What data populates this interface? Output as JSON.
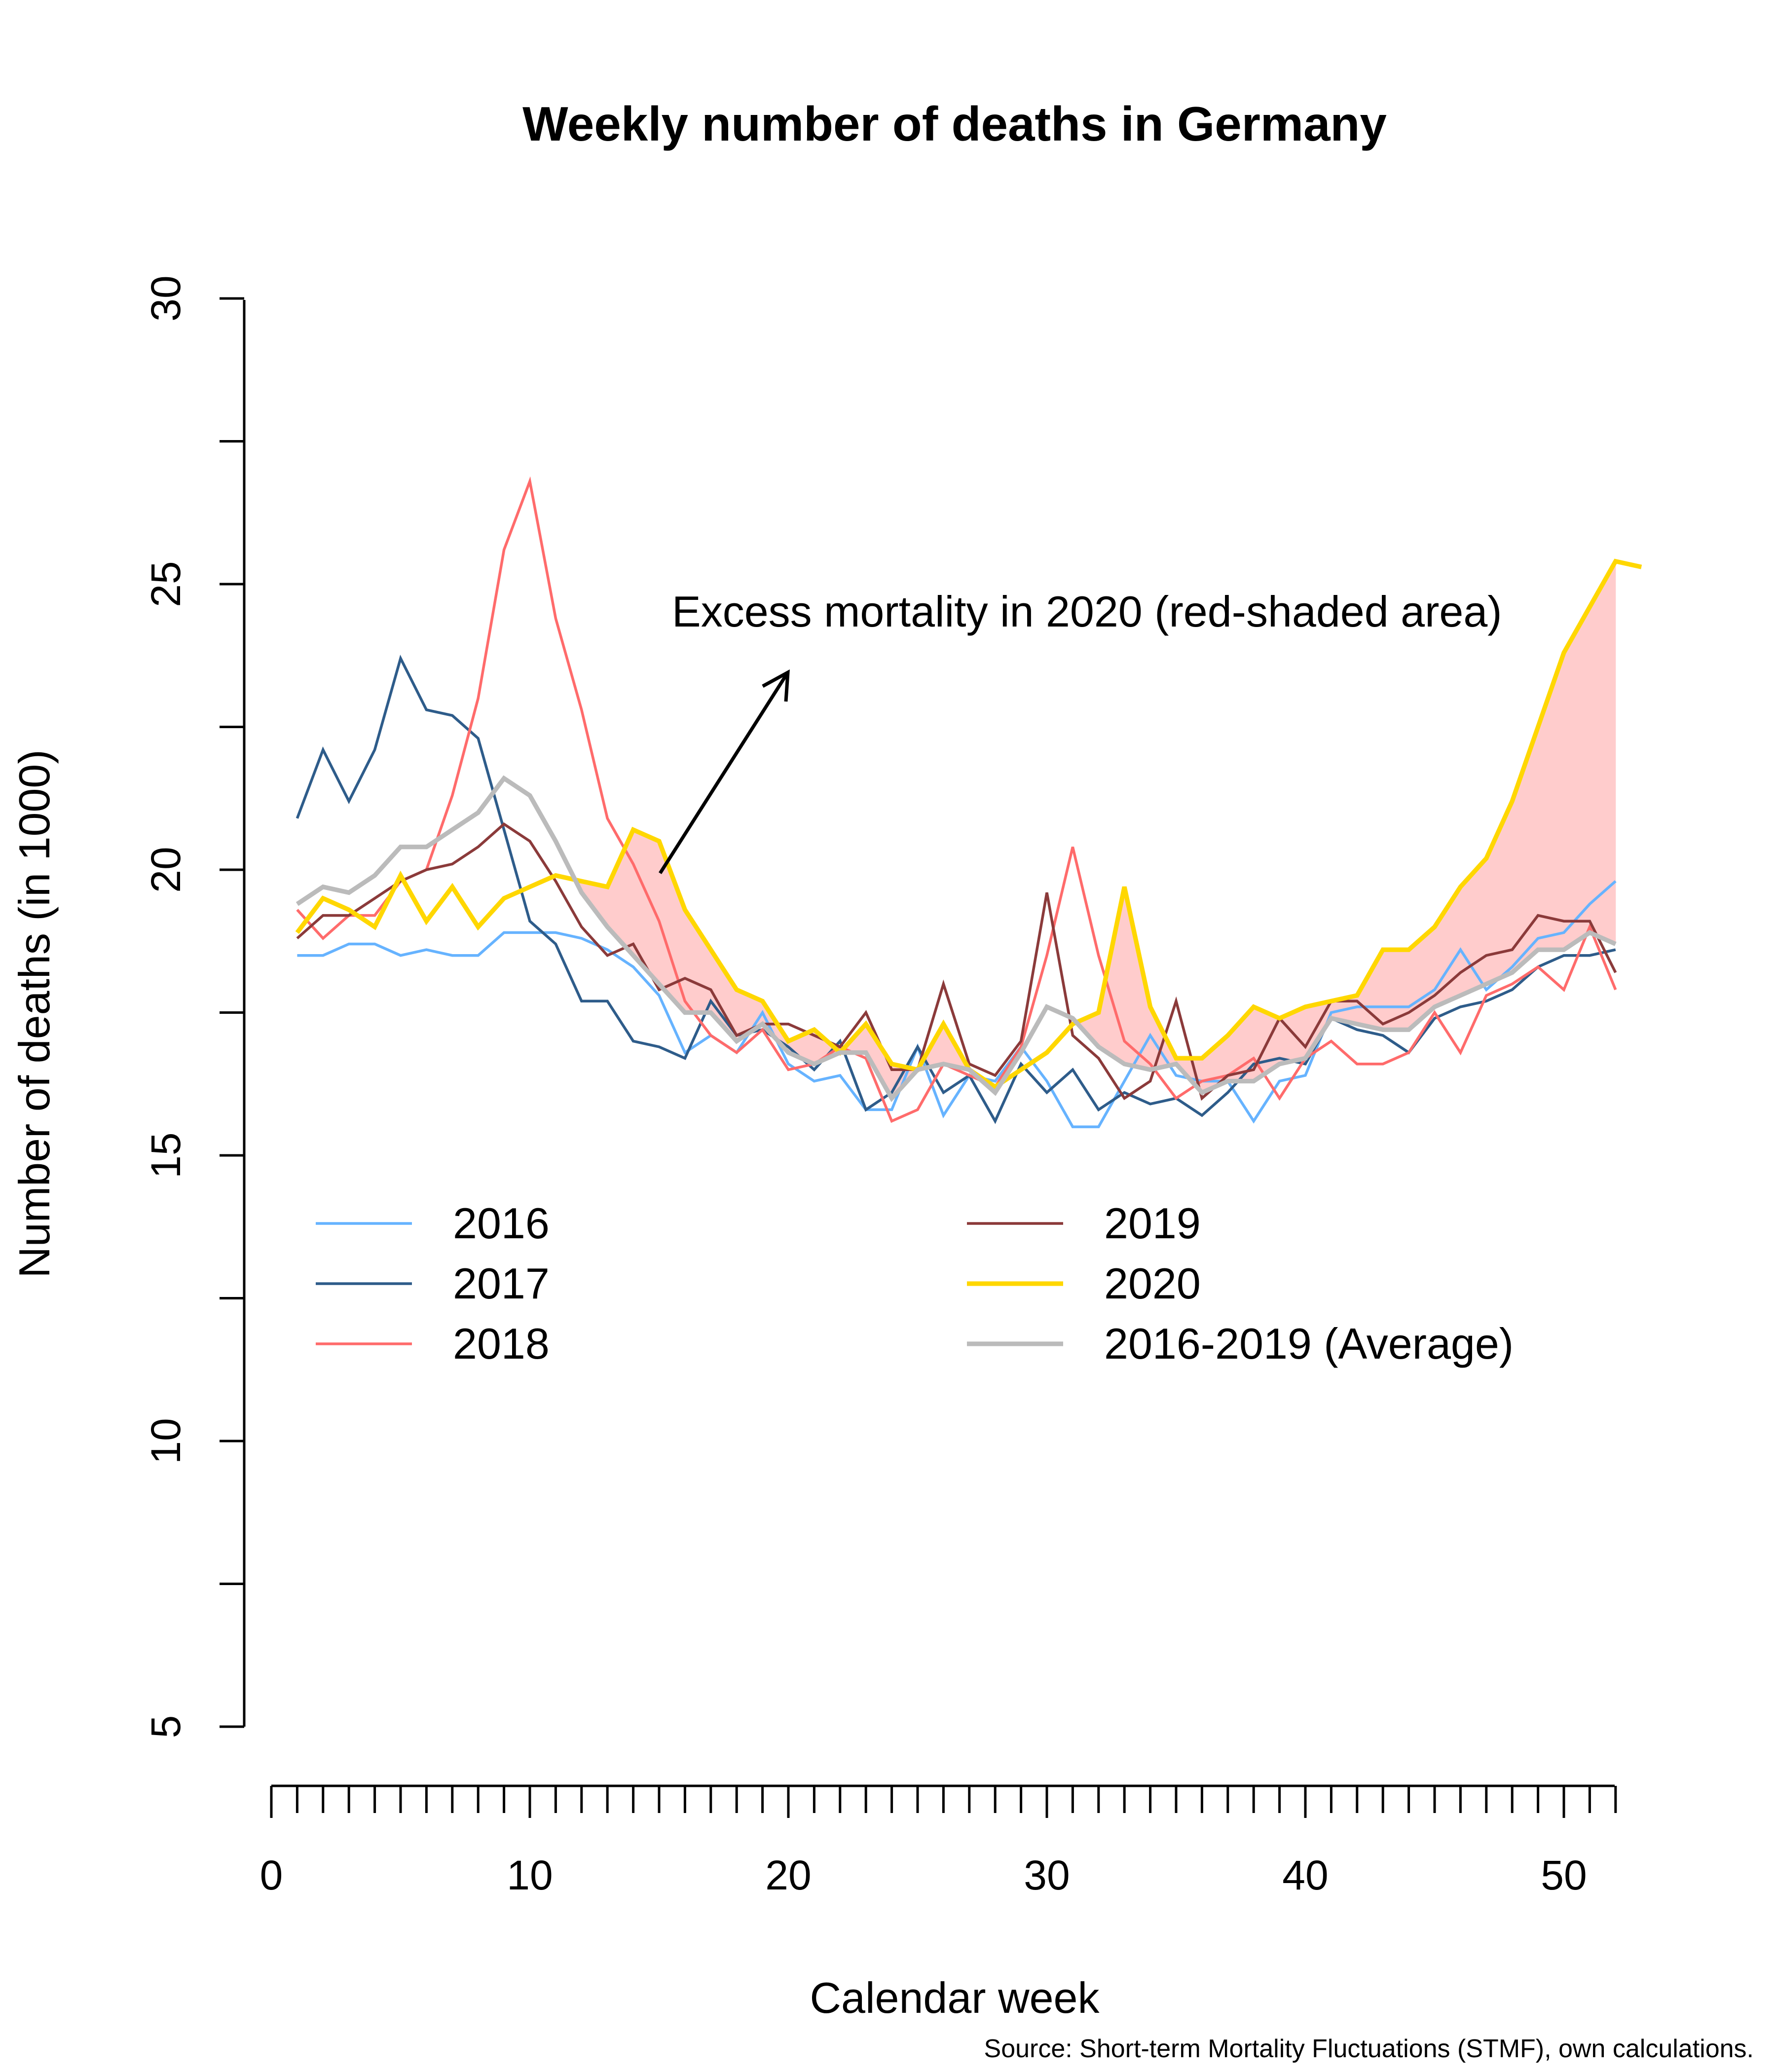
{
  "chart_data": {
    "type": "line",
    "title": "Weekly number of deaths in Germany",
    "xlabel": "Calendar week",
    "ylabel": "Number of deaths (in 1000)",
    "xlim": [
      0,
      52
    ],
    "ylim": [
      5,
      30
    ],
    "x_ticks": [
      "0",
      "10",
      "20",
      "30",
      "40",
      "50"
    ],
    "y_ticks": [
      "5",
      "10",
      "15",
      "20",
      "25",
      "30"
    ],
    "annotation": "Excess mortality in 2020 (red-shaded area)",
    "source": "Source: Short-term Mortality Fluctuations (STMF), own calculations.",
    "shade_color": "#ffcccc",
    "legend_position": "center",
    "series": [
      {
        "name": "2016",
        "color": "#66b3ff",
        "width": 2.5,
        "x": [
          1,
          2,
          3,
          4,
          5,
          6,
          7,
          8,
          9,
          10,
          11,
          12,
          13,
          14,
          15,
          16,
          17,
          18,
          19,
          20,
          21,
          22,
          23,
          24,
          25,
          26,
          27,
          28,
          29,
          30,
          31,
          32,
          33,
          34,
          35,
          36,
          37,
          38,
          39,
          40,
          41,
          42,
          43,
          44,
          45,
          46,
          47,
          48,
          49,
          50,
          51,
          52
        ],
        "values": [
          18.5,
          18.5,
          18.7,
          18.7,
          18.5,
          18.6,
          18.5,
          18.5,
          18.9,
          18.9,
          18.9,
          18.8,
          18.6,
          18.3,
          17.8,
          16.8,
          17.1,
          16.8,
          17.5,
          16.6,
          16.3,
          16.4,
          15.8,
          15.8,
          16.9,
          15.7,
          16.4,
          16.3,
          16.9,
          16.3,
          15.5,
          15.5,
          16.3,
          17.1,
          16.4,
          16.3,
          16.3,
          15.6,
          16.3,
          16.4,
          17.5,
          17.6,
          17.6,
          17.6,
          17.9,
          18.6,
          17.9,
          18.3,
          18.8,
          18.9,
          19.4,
          19.8
        ]
      },
      {
        "name": "2017",
        "color": "#2e5c8a",
        "width": 2.5,
        "x": [
          1,
          2,
          3,
          4,
          5,
          6,
          7,
          8,
          9,
          10,
          11,
          12,
          13,
          14,
          15,
          16,
          17,
          18,
          19,
          20,
          21,
          22,
          23,
          24,
          25,
          26,
          27,
          28,
          29,
          30,
          31,
          32,
          33,
          34,
          35,
          36,
          37,
          38,
          39,
          40,
          41,
          42,
          43,
          44,
          45,
          46,
          47,
          48,
          49,
          50,
          51,
          52
        ],
        "values": [
          20.9,
          22.1,
          21.2,
          22.1,
          23.7,
          22.8,
          22.7,
          22.3,
          20.7,
          19.1,
          18.7,
          17.7,
          17.7,
          17.0,
          16.9,
          16.7,
          17.7,
          17.1,
          17.2,
          16.9,
          16.5,
          17.0,
          15.8,
          16.1,
          16.9,
          16.1,
          16.4,
          15.6,
          16.6,
          16.1,
          16.5,
          15.8,
          16.1,
          15.9,
          16.0,
          15.7,
          16.1,
          16.6,
          16.7,
          16.6,
          17.4,
          17.2,
          17.1,
          16.8,
          17.4,
          17.6,
          17.7,
          17.9,
          18.3,
          18.5,
          18.5,
          18.6
        ]
      },
      {
        "name": "2018",
        "color": "#ff6b6b",
        "width": 2.5,
        "x": [
          1,
          2,
          3,
          4,
          5,
          6,
          7,
          8,
          9,
          10,
          11,
          12,
          13,
          14,
          15,
          16,
          17,
          18,
          19,
          20,
          21,
          22,
          23,
          24,
          25,
          26,
          27,
          28,
          29,
          30,
          31,
          32,
          33,
          34,
          35,
          36,
          37,
          38,
          39,
          40,
          41,
          42,
          43,
          44,
          45,
          46,
          47,
          48,
          49,
          50,
          51,
          52
        ],
        "values": [
          19.3,
          18.8,
          19.2,
          19.2,
          19.8,
          20.0,
          21.3,
          23.0,
          25.6,
          26.8,
          24.4,
          22.8,
          20.9,
          20.1,
          19.1,
          17.7,
          17.1,
          16.8,
          17.2,
          16.5,
          16.6,
          16.9,
          16.7,
          15.6,
          15.8,
          16.6,
          16.4,
          16.2,
          16.9,
          18.5,
          20.4,
          18.5,
          17.0,
          16.6,
          16.0,
          16.3,
          16.4,
          16.7,
          16.0,
          16.7,
          17.0,
          16.6,
          16.6,
          16.8,
          17.5,
          16.8,
          17.8,
          18.0,
          18.3,
          17.9,
          19.0,
          17.9
        ]
      },
      {
        "name": "2019",
        "color": "#8b3a3a",
        "width": 2.5,
        "x": [
          1,
          2,
          3,
          4,
          5,
          6,
          7,
          8,
          9,
          10,
          11,
          12,
          13,
          14,
          15,
          16,
          17,
          18,
          19,
          20,
          21,
          22,
          23,
          24,
          25,
          26,
          27,
          28,
          29,
          30,
          31,
          32,
          33,
          34,
          35,
          36,
          37,
          38,
          39,
          40,
          41,
          42,
          43,
          44,
          45,
          46,
          47,
          48,
          49,
          50,
          51,
          52
        ],
        "values": [
          18.8,
          19.2,
          19.2,
          19.5,
          19.8,
          20.0,
          20.1,
          20.4,
          20.8,
          20.5,
          19.8,
          19.0,
          18.5,
          18.7,
          17.9,
          18.1,
          17.9,
          17.1,
          17.3,
          17.3,
          17.1,
          16.9,
          17.5,
          16.5,
          16.5,
          18.0,
          16.6,
          16.4,
          17.0,
          19.6,
          17.1,
          16.7,
          16.0,
          16.3,
          17.7,
          16.0,
          16.4,
          16.5,
          17.4,
          16.9,
          17.7,
          17.7,
          17.3,
          17.5,
          17.8,
          18.2,
          18.5,
          18.6,
          19.2,
          19.1,
          19.1,
          18.2
        ]
      },
      {
        "name": "2020",
        "color": "#ffd700",
        "width": 4.2,
        "x": [
          1,
          2,
          3,
          4,
          5,
          6,
          7,
          8,
          9,
          10,
          11,
          12,
          13,
          14,
          15,
          16,
          17,
          18,
          19,
          20,
          21,
          22,
          23,
          24,
          25,
          26,
          27,
          28,
          29,
          30,
          31,
          32,
          33,
          34,
          35,
          36,
          37,
          38,
          39,
          40,
          41,
          42,
          43,
          44,
          45,
          46,
          47,
          48,
          49,
          50,
          51,
          52,
          53
        ],
        "values": [
          18.9,
          19.5,
          19.3,
          19.0,
          19.9,
          19.1,
          19.7,
          19.0,
          19.5,
          19.7,
          19.9,
          19.8,
          19.7,
          20.7,
          20.5,
          19.3,
          18.6,
          17.9,
          17.7,
          17.0,
          17.2,
          16.8,
          17.3,
          16.6,
          16.5,
          17.3,
          16.5,
          16.2,
          16.5,
          16.8,
          17.3,
          17.5,
          19.7,
          17.6,
          16.7,
          16.7,
          17.1,
          17.6,
          17.4,
          17.6,
          17.7,
          17.8,
          18.6,
          18.6,
          19.0,
          19.7,
          20.2,
          21.2,
          22.5,
          23.8,
          24.6,
          25.4,
          25.3
        ]
      },
      {
        "name": "2016-2019 (Average)",
        "color": "#bbbbbb",
        "width": 4.2,
        "x": [
          1,
          2,
          3,
          4,
          5,
          6,
          7,
          8,
          9,
          10,
          11,
          12,
          13,
          14,
          15,
          16,
          17,
          18,
          19,
          20,
          21,
          22,
          23,
          24,
          25,
          26,
          27,
          28,
          29,
          30,
          31,
          32,
          33,
          34,
          35,
          36,
          37,
          38,
          39,
          40,
          41,
          42,
          43,
          44,
          45,
          46,
          47,
          48,
          49,
          50,
          51,
          52
        ],
        "values": [
          19.4,
          19.7,
          19.6,
          19.9,
          20.4,
          20.4,
          20.7,
          21.0,
          21.6,
          21.3,
          20.5,
          19.6,
          19.0,
          18.5,
          18.0,
          17.5,
          17.5,
          17.0,
          17.3,
          16.8,
          16.6,
          16.8,
          16.8,
          16.0,
          16.5,
          16.6,
          16.5,
          16.1,
          16.8,
          17.6,
          17.4,
          16.9,
          16.6,
          16.5,
          16.6,
          16.1,
          16.3,
          16.3,
          16.6,
          16.7,
          17.4,
          17.3,
          17.2,
          17.2,
          17.6,
          17.8,
          18.0,
          18.2,
          18.6,
          18.6,
          18.9,
          18.7
        ]
      }
    ]
  }
}
